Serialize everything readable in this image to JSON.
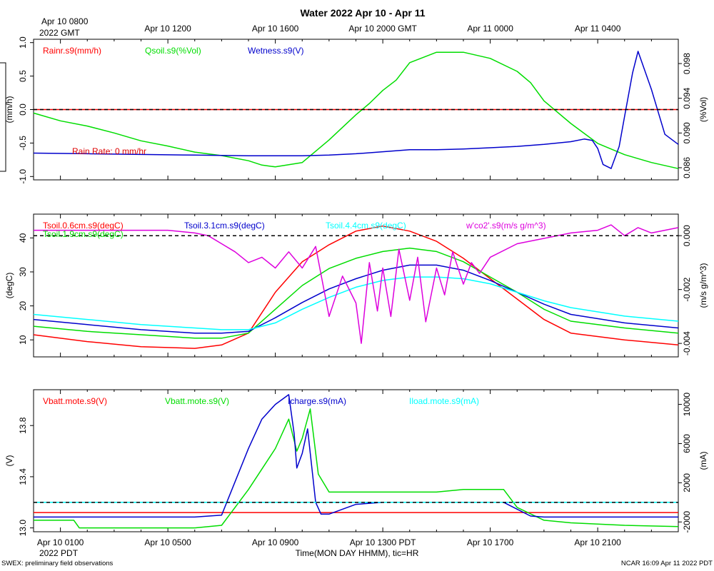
{
  "title": "Water 2022 Apr 10 - Apr 11",
  "top_time_axis": {
    "first_label_line1": "Apr 10 0800",
    "first_label_line2": "2022 GMT",
    "labels": [
      "Apr 10 1200",
      "Apr 10 1600",
      "Apr 10 2000 GMT",
      "Apr 11 0000",
      "Apr 11 0400"
    ]
  },
  "bottom_time_axis": {
    "labels": [
      "Apr 10 0100",
      "Apr 10 0500",
      "Apr 10 0900",
      "Apr 10 1300 PDT",
      "Apr 10 1700",
      "Apr 10 2100"
    ],
    "year_label": "2022 PDT",
    "xlabel": "Time(MON DAY HHMM), tic=HR"
  },
  "footer": {
    "left": "SWEX: preliminary field observations",
    "right": "NCAR 16:09 Apr 11 2022 PDT"
  },
  "chart_data": [
    {
      "type": "line",
      "x_unit": "hours since Apr 10 0000 PDT",
      "x_range": [
        0,
        24
      ],
      "left_axis": {
        "label": "(mm/h)",
        "range": [
          -1.05,
          1.05
        ],
        "ticks": [
          "1.0",
          "0.5",
          "0.0",
          "-0.5",
          "-1.0"
        ]
      },
      "right_axis": {
        "label": "(%Vol)",
        "range": [
          0.0846,
          0.1008
        ],
        "ticks": [
          "0.098",
          "0.094",
          "0.090",
          "0.086"
        ]
      },
      "annotation": "Rain Rate: 0 mm/hr",
      "series": [
        {
          "name": "Rainr.s9(mm/h)",
          "color": "#ff0000",
          "axis": "left",
          "x": [
            0,
            24
          ],
          "y": [
            0,
            0
          ]
        },
        {
          "name": "Qsoil.s9(%Vol)",
          "color": "#00dd00",
          "axis": "right",
          "x": [
            0,
            1,
            2,
            3,
            4,
            5,
            6,
            7,
            8,
            8.5,
            9,
            10,
            11,
            12,
            12.5,
            13,
            13.5,
            14,
            15,
            16,
            17,
            18,
            18.5,
            19,
            20,
            21,
            22,
            23,
            24
          ],
          "y": [
            0.0923,
            0.0914,
            0.0908,
            0.09,
            0.0891,
            0.0885,
            0.0878,
            0.0874,
            0.0868,
            0.0863,
            0.0861,
            0.0866,
            0.0892,
            0.0921,
            0.0934,
            0.0949,
            0.0961,
            0.0981,
            0.0993,
            0.0993,
            0.0986,
            0.0971,
            0.0958,
            0.0937,
            0.0911,
            0.0888,
            0.0875,
            0.0866,
            0.0859
          ]
        },
        {
          "name": "Wetness.s9(V)",
          "color": "#0000cc",
          "axis": "left",
          "x": [
            0,
            2,
            4,
            6,
            8,
            10,
            11,
            12,
            13,
            14,
            15,
            16,
            17,
            18,
            19,
            20,
            20.5,
            20.8,
            21,
            21.2,
            21.5,
            21.8,
            22,
            22.3,
            22.5,
            23,
            23.5,
            24
          ],
          "y": [
            -0.65,
            -0.66,
            -0.67,
            -0.68,
            -0.69,
            -0.69,
            -0.68,
            -0.66,
            -0.63,
            -0.6,
            -0.6,
            -0.59,
            -0.57,
            -0.55,
            -0.52,
            -0.48,
            -0.44,
            -0.46,
            -0.58,
            -0.82,
            -0.88,
            -0.55,
            -0.1,
            0.55,
            0.87,
            0.3,
            -0.37,
            -0.52
          ]
        }
      ]
    },
    {
      "type": "line",
      "x_unit": "hours since Apr 10 0000 PDT",
      "x_range": [
        0,
        24
      ],
      "left_axis": {
        "label": "(degC)",
        "range": [
          5,
          47
        ],
        "ticks": [
          "40",
          "30",
          "20",
          "10"
        ]
      },
      "right_axis": {
        "label": "(m/s g/m^3)",
        "range": [
          -0.0045,
          0.0008
        ],
        "ticks": [
          "0.000",
          "-0.002",
          "-0.004"
        ]
      },
      "series": [
        {
          "name": "Tsoil.0.6cm.s9(degC)",
          "color": "#ff0000",
          "axis": "left",
          "x": [
            0,
            2,
            4,
            6,
            7,
            8,
            9,
            10,
            11,
            12,
            13,
            14,
            15,
            16,
            17,
            18,
            19,
            20,
            22,
            24
          ],
          "y": [
            11.5,
            9.5,
            8.0,
            7.5,
            8.5,
            12.0,
            24.0,
            33.0,
            38.0,
            42.0,
            43.5,
            42.0,
            39.0,
            34.0,
            28.0,
            22.0,
            16.0,
            12.0,
            10.0,
            8.5
          ]
        },
        {
          "name": "Tsoil.1.9cm.s9(degC)",
          "color": "#00dd00",
          "axis": "left",
          "x": [
            0,
            2,
            4,
            6,
            7,
            8,
            9,
            10,
            11,
            12,
            13,
            14,
            15,
            16,
            17,
            18,
            19,
            20,
            22,
            24
          ],
          "y": [
            14.0,
            12.5,
            11.5,
            10.5,
            10.5,
            12.0,
            19.0,
            26.0,
            31.0,
            34.0,
            36.0,
            37.0,
            36.0,
            33.0,
            28.5,
            24.0,
            19.0,
            15.5,
            13.5,
            12.0
          ]
        },
        {
          "name": "Tsoil.3.1cm.s9(degC)",
          "color": "#0000cc",
          "axis": "left",
          "x": [
            0,
            2,
            4,
            6,
            7,
            8,
            9,
            10,
            11,
            12,
            13,
            14,
            15,
            16,
            17,
            18,
            19,
            20,
            22,
            24
          ],
          "y": [
            16.0,
            14.5,
            13.0,
            12.0,
            12.0,
            12.5,
            16.5,
            21.0,
            25.0,
            28.0,
            30.5,
            32.0,
            32.0,
            30.5,
            27.5,
            24.0,
            20.5,
            17.5,
            15.0,
            13.5
          ]
        },
        {
          "name": "Tsoil.4.4cm.s9(degC)",
          "color": "#00ffff",
          "axis": "left",
          "x": [
            0,
            2,
            4,
            6,
            7,
            8,
            9,
            10,
            11,
            12,
            13,
            14,
            15,
            16,
            17,
            18,
            19,
            20,
            22,
            24
          ],
          "y": [
            17.5,
            16.0,
            14.5,
            13.5,
            13.0,
            13.0,
            15.0,
            19.0,
            22.5,
            25.5,
            27.5,
            28.5,
            28.5,
            28.0,
            26.5,
            24.0,
            21.5,
            19.5,
            17.0,
            15.5
          ]
        },
        {
          "name": "w'co2'.s9(m/s g/m^3)",
          "color": "#dd00dd",
          "axis": "right",
          "x": [
            0,
            1,
            2,
            3,
            4,
            5,
            6,
            6.5,
            7,
            7.5,
            8,
            8.5,
            9,
            9.5,
            10,
            10.5,
            11,
            11.5,
            12,
            12.2,
            12.5,
            12.8,
            13,
            13.3,
            13.6,
            14,
            14.3,
            14.6,
            15,
            15.3,
            15.6,
            16,
            16.3,
            16.6,
            17,
            18,
            19,
            20,
            21,
            21.5,
            22,
            22.5,
            23,
            23.5,
            24
          ],
          "y": [
            0.0002,
            0.0002,
            0.0002,
            0.0002,
            0.0002,
            0.0002,
            0.0001,
            0.0,
            -0.0003,
            -0.0006,
            -0.001,
            -0.0008,
            -0.0012,
            -0.0006,
            -0.0012,
            -0.0004,
            -0.003,
            -0.0015,
            -0.0025,
            -0.004,
            -0.001,
            -0.0028,
            -0.0012,
            -0.003,
            -0.0005,
            -0.0024,
            -0.0008,
            -0.0032,
            -0.0012,
            -0.0022,
            -0.0006,
            -0.0018,
            -0.001,
            -0.0014,
            -0.0008,
            -0.0003,
            -0.0001,
            0.0001,
            0.0002,
            0.0004,
            0.0,
            0.0003,
            0.0001,
            0.0002,
            0.0003
          ]
        }
      ]
    },
    {
      "type": "line",
      "x_unit": "hours since Apr 10 0000 PDT",
      "x_range": [
        0,
        24
      ],
      "left_axis": {
        "label": "(V)",
        "range": [
          12.97,
          14.08
        ],
        "ticks": [
          "13.8",
          "13.4",
          "13.0"
        ]
      },
      "right_axis": {
        "label": "(mA)",
        "range": [
          -3000,
          11500
        ],
        "ticks": [
          "10000",
          "6000",
          "2000",
          "-2000"
        ]
      },
      "series": [
        {
          "name": "Vbatt.mote.s9(V)",
          "color": "#ff0000",
          "axis": "left",
          "x": [
            0,
            24
          ],
          "y": [
            13.12,
            13.12
          ]
        },
        {
          "name": "Vbatt.mote.s9(V)",
          "color": "#00dd00",
          "axis": "left",
          "x": [
            0,
            1.5,
            1.7,
            6,
            7,
            8,
            9,
            9.5,
            9.8,
            10,
            10.3,
            10.6,
            11,
            12,
            13,
            14,
            15,
            16,
            17,
            17.5,
            18,
            19,
            20,
            22,
            24
          ],
          "y": [
            13.06,
            13.06,
            13.0,
            13.0,
            13.02,
            13.3,
            13.62,
            13.85,
            13.6,
            13.7,
            13.93,
            13.42,
            13.28,
            13.28,
            13.28,
            13.28,
            13.28,
            13.3,
            13.3,
            13.3,
            13.16,
            13.06,
            13.04,
            13.02,
            13.01
          ]
        },
        {
          "name": "Icharge.s9(mA)",
          "color": "#0000cc",
          "axis": "right",
          "x": [
            0,
            6,
            7,
            8,
            8.5,
            9,
            9.5,
            9.7,
            9.8,
            10,
            10.2,
            10.5,
            10.7,
            11,
            12,
            13,
            14,
            15,
            16,
            17,
            17.5,
            18,
            18.5,
            19,
            20,
            22,
            24
          ],
          "y": [
            -1500,
            -1500,
            -1300,
            5500,
            8500,
            10000,
            11000,
            7000,
            3500,
            5000,
            7500,
            0,
            -1200,
            -1200,
            -200,
            0,
            0,
            0,
            0,
            0,
            0,
            -700,
            -1400,
            -1500,
            -1500,
            -1500,
            -1500
          ]
        },
        {
          "name": "Iload.mote.s9(mA)",
          "color": "#00ffff",
          "axis": "right",
          "x": [
            0,
            24
          ],
          "y": [
            0,
            0
          ]
        }
      ]
    }
  ]
}
